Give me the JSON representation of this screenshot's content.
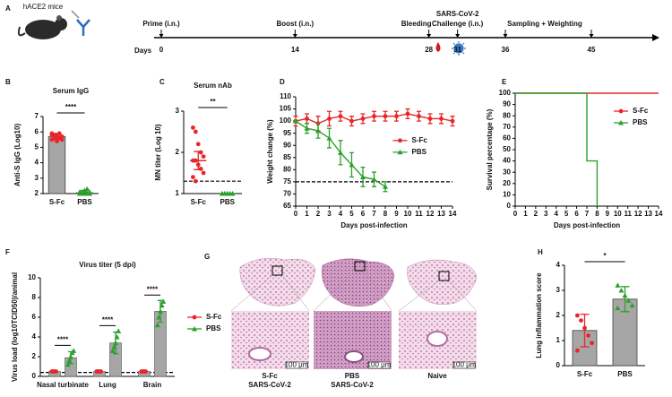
{
  "timeline": {
    "panel": "A",
    "mouse_label": "hACE2 mice",
    "axis_label": "Days",
    "events": [
      {
        "label": [
          "Prime (i.n.)"
        ],
        "day": 0
      },
      {
        "label": [
          "Boost (i.n.)"
        ],
        "day": 14
      },
      {
        "label": [
          "Bleeding"
        ],
        "day": 28
      },
      {
        "label": [
          "SARS-CoV-2",
          "Challenge (i.n.)"
        ],
        "day": 31
      },
      {
        "label": [
          "Sampling + Weighting"
        ],
        "day": 36
      },
      {
        "label": null,
        "day": 45
      }
    ]
  },
  "histology": {
    "panel": "G",
    "groups": [
      {
        "label": [
          "S-Fc",
          "SARS-CoV-2"
        ],
        "scale_bar": "100 μm"
      },
      {
        "label": [
          "PBS",
          "SARS-CoV-2"
        ],
        "scale_bar": "100 μm"
      },
      {
        "label": [
          "Naive"
        ],
        "scale_bar": "100 μm"
      }
    ]
  },
  "chart_data": [
    {
      "panel": "B",
      "type": "bar",
      "title": "Serum IgG",
      "ylabel": "Anti-S IgG (Log10)",
      "categories": [
        "S-Fc",
        "PBS"
      ],
      "values": [
        5.7,
        2.05
      ],
      "errors": [
        0.2,
        0.15
      ],
      "points": [
        [
          5.9,
          5.8,
          5.7,
          5.6,
          5.5,
          5.8,
          5.6,
          5.4,
          5.9,
          5.7,
          5.5,
          5.6
        ],
        [
          2.0,
          2.1,
          2.2,
          2.3,
          2.0,
          2.1,
          2.0,
          2.2,
          2.0,
          2.1
        ]
      ],
      "colors": [
        "#e8262a",
        "#2ca02c"
      ],
      "markers": [
        "circle",
        "triangle"
      ],
      "bars": true,
      "bar_color": "#a6a6a6",
      "ylim": [
        2,
        7
      ],
      "yticks": [
        2,
        3,
        4,
        5,
        6,
        7
      ],
      "significance": "****"
    },
    {
      "panel": "C",
      "type": "bar",
      "title": "Serum nAb",
      "ylabel": "MN titer (Log 10)",
      "categories": [
        "S-Fc",
        "PBS"
      ],
      "values": [
        1.8,
        1.0
      ],
      "errors": [
        0.22,
        0
      ],
      "points": [
        [
          2.6,
          2.5,
          2.2,
          2.0,
          1.9,
          1.8,
          1.8,
          1.7,
          1.6,
          1.5,
          1.4,
          1.3
        ],
        [
          1.0,
          1.0,
          1.0,
          1.0,
          1.0,
          1.0,
          1.0,
          1.0
        ]
      ],
      "colors": [
        "#e8262a",
        "#2ca02c"
      ],
      "markers": [
        "circle",
        "triangle"
      ],
      "bars": false,
      "bar_color": "#a6a6a6",
      "ylim": [
        1,
        3
      ],
      "yticks": [
        1,
        2,
        3
      ],
      "reference_line": 1.3,
      "significance": "**"
    },
    {
      "panel": "D",
      "type": "line",
      "ylabel": "Weight change (%)",
      "xlabel": "Days post-infection",
      "x": [
        0,
        1,
        2,
        3,
        4,
        5,
        6,
        7,
        8,
        9,
        10,
        11,
        12,
        13,
        14
      ],
      "series": [
        {
          "name": "S-Fc",
          "color": "#e8262a",
          "marker": "circle",
          "values": [
            100,
            101,
            99,
            101,
            102,
            100,
            101,
            102,
            102,
            102,
            103,
            102,
            101,
            101,
            100
          ],
          "errors": [
            2,
            2,
            3,
            3,
            2,
            2,
            2,
            2,
            2,
            2,
            2,
            2,
            2,
            2,
            2
          ]
        },
        {
          "name": "PBS",
          "color": "#2ca02c",
          "marker": "triangle",
          "values": [
            100,
            97,
            96,
            93,
            87,
            82,
            77,
            76,
            73,
            null,
            null,
            null,
            null,
            null,
            null
          ],
          "errors": [
            0,
            2,
            3,
            4,
            5,
            5,
            4,
            3,
            2,
            null,
            null,
            null,
            null,
            null,
            null
          ]
        }
      ],
      "xlim": [
        0,
        14
      ],
      "xticks": [
        0,
        1,
        2,
        3,
        4,
        5,
        6,
        7,
        8,
        9,
        10,
        11,
        12,
        13,
        14
      ],
      "ylim": [
        65,
        110
      ],
      "yticks": [
        65,
        70,
        75,
        80,
        85,
        90,
        95,
        100,
        105,
        110
      ],
      "reference_line": 75,
      "legend": "right"
    },
    {
      "panel": "E",
      "type": "step",
      "ylabel": "Survival percentage (%)",
      "xlabel": "Days post-infection",
      "series": [
        {
          "name": "S-Fc",
          "color": "#e8262a",
          "marker": "circle",
          "x": [
            0,
            14
          ],
          "values": [
            100,
            100
          ]
        },
        {
          "name": "PBS",
          "color": "#2ca02c",
          "marker": "triangle",
          "x": [
            0,
            7,
            7,
            8,
            8
          ],
          "values": [
            100,
            100,
            40,
            40,
            0
          ]
        }
      ],
      "xlim": [
        0,
        14
      ],
      "xticks": [
        0,
        1,
        2,
        3,
        4,
        5,
        6,
        7,
        8,
        9,
        10,
        11,
        12,
        13,
        14
      ],
      "ylim": [
        0,
        100
      ],
      "yticks": [
        0,
        10,
        20,
        30,
        40,
        50,
        60,
        70,
        80,
        90,
        100
      ],
      "legend": "upper right"
    },
    {
      "panel": "F",
      "type": "bar",
      "title": "Virus titer (5 dpi)",
      "ylabel": "Virus load (log10TCID50)/animal",
      "categories": [
        "Nasal turbinate",
        "Lung",
        "Brain"
      ],
      "series": [
        {
          "name": "S-Fc",
          "color": "#e8262a",
          "marker": "circle",
          "values": [
            0.5,
            0.5,
            0.5
          ],
          "errors": [
            0,
            0,
            0
          ],
          "points": [
            [
              0.5,
              0.5,
              0.5,
              0.5
            ],
            [
              0.5,
              0.5,
              0.5,
              0.5
            ],
            [
              0.5,
              0.5,
              0.5,
              0.5
            ]
          ]
        },
        {
          "name": "PBS",
          "color": "#2ca02c",
          "marker": "triangle",
          "values": [
            1.9,
            3.4,
            6.6
          ],
          "errors": [
            0.6,
            1.1,
            1.1
          ],
          "points": [
            [
              1.2,
              1.6,
              2.0,
              2.4,
              2.6
            ],
            [
              2.6,
              3.0,
              3.4,
              4.0,
              4.6
            ],
            [
              5.2,
              6.0,
              6.6,
              7.2,
              7.6
            ]
          ]
        }
      ],
      "bar_color": "#a6a6a6",
      "ylim": [
        0,
        10
      ],
      "yticks": [
        0,
        2,
        4,
        6,
        8,
        10
      ],
      "reference_line": 0.4,
      "significance": [
        "****",
        "****",
        "****"
      ],
      "legend": "outside right"
    },
    {
      "panel": "H",
      "type": "bar",
      "ylabel": "Lung inflammation score",
      "categories": [
        "S-Fc",
        "PBS"
      ],
      "values": [
        1.4,
        2.65
      ],
      "errors": [
        0.65,
        0.5
      ],
      "points": [
        [
          2.0,
          1.8,
          1.5,
          1.2,
          0.9,
          0.6
        ],
        [
          3.2,
          3.0,
          2.8,
          2.6,
          2.4,
          2.3
        ]
      ],
      "colors": [
        "#e8262a",
        "#2ca02c"
      ],
      "markers": [
        "circle",
        "triangle"
      ],
      "bars": true,
      "bar_color": "#a6a6a6",
      "ylim": [
        0,
        4
      ],
      "yticks": [
        0,
        1,
        2,
        3,
        4
      ],
      "significance": "*"
    }
  ]
}
